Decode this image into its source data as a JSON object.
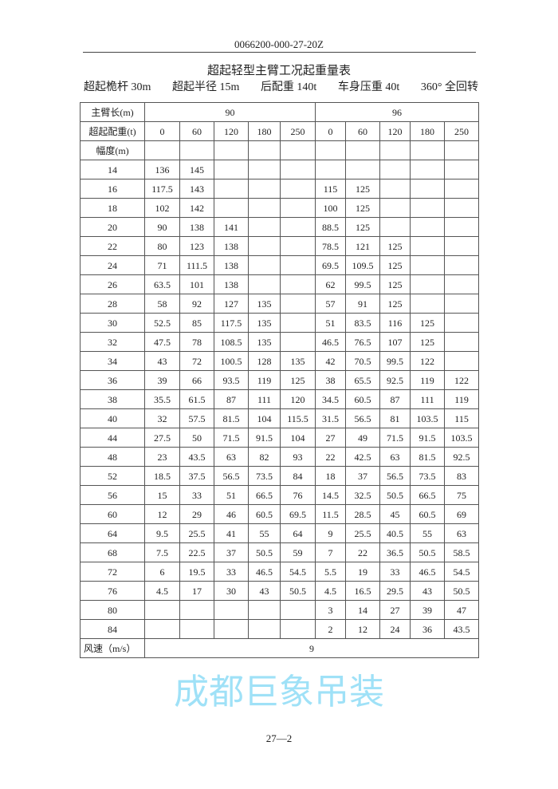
{
  "header": {
    "doc_number": "0066200-000-27-20Z"
  },
  "title": "超起轻型主臂工况起重量表",
  "params": [
    "超起桅杆 30m",
    "超起半径 15m",
    "后配重 140t",
    "车身压重 40t",
    "360° 全回转"
  ],
  "table": {
    "boom_label": "主臂长(m)",
    "boom_lengths": [
      "90",
      "96"
    ],
    "counterweight_label": "超起配重(t)",
    "counterweights": [
      "0",
      "60",
      "120",
      "180",
      "250",
      "0",
      "60",
      "120",
      "180",
      "250"
    ],
    "radius_label": "幅度(m)",
    "rows": [
      {
        "r": "14",
        "v": [
          "136",
          "145",
          "",
          "",
          "",
          "",
          "",
          "",
          "",
          ""
        ]
      },
      {
        "r": "16",
        "v": [
          "117.5",
          "143",
          "",
          "",
          "",
          "115",
          "125",
          "",
          "",
          ""
        ]
      },
      {
        "r": "18",
        "v": [
          "102",
          "142",
          "",
          "",
          "",
          "100",
          "125",
          "",
          "",
          ""
        ]
      },
      {
        "r": "20",
        "v": [
          "90",
          "138",
          "141",
          "",
          "",
          "88.5",
          "125",
          "",
          "",
          ""
        ]
      },
      {
        "r": "22",
        "v": [
          "80",
          "123",
          "138",
          "",
          "",
          "78.5",
          "121",
          "125",
          "",
          ""
        ]
      },
      {
        "r": "24",
        "v": [
          "71",
          "111.5",
          "138",
          "",
          "",
          "69.5",
          "109.5",
          "125",
          "",
          ""
        ]
      },
      {
        "r": "26",
        "v": [
          "63.5",
          "101",
          "138",
          "",
          "",
          "62",
          "99.5",
          "125",
          "",
          ""
        ]
      },
      {
        "r": "28",
        "v": [
          "58",
          "92",
          "127",
          "135",
          "",
          "57",
          "91",
          "125",
          "",
          ""
        ]
      },
      {
        "r": "30",
        "v": [
          "52.5",
          "85",
          "117.5",
          "135",
          "",
          "51",
          "83.5",
          "116",
          "125",
          ""
        ]
      },
      {
        "r": "32",
        "v": [
          "47.5",
          "78",
          "108.5",
          "135",
          "",
          "46.5",
          "76.5",
          "107",
          "125",
          ""
        ]
      },
      {
        "r": "34",
        "v": [
          "43",
          "72",
          "100.5",
          "128",
          "135",
          "42",
          "70.5",
          "99.5",
          "122",
          ""
        ]
      },
      {
        "r": "36",
        "v": [
          "39",
          "66",
          "93.5",
          "119",
          "125",
          "38",
          "65.5",
          "92.5",
          "119",
          "122"
        ]
      },
      {
        "r": "38",
        "v": [
          "35.5",
          "61.5",
          "87",
          "111",
          "120",
          "34.5",
          "60.5",
          "87",
          "111",
          "119"
        ]
      },
      {
        "r": "40",
        "v": [
          "32",
          "57.5",
          "81.5",
          "104",
          "115.5",
          "31.5",
          "56.5",
          "81",
          "103.5",
          "115"
        ]
      },
      {
        "r": "44",
        "v": [
          "27.5",
          "50",
          "71.5",
          "91.5",
          "104",
          "27",
          "49",
          "71.5",
          "91.5",
          "103.5"
        ]
      },
      {
        "r": "48",
        "v": [
          "23",
          "43.5",
          "63",
          "82",
          "93",
          "22",
          "42.5",
          "63",
          "81.5",
          "92.5"
        ]
      },
      {
        "r": "52",
        "v": [
          "18.5",
          "37.5",
          "56.5",
          "73.5",
          "84",
          "18",
          "37",
          "56.5",
          "73.5",
          "83"
        ]
      },
      {
        "r": "56",
        "v": [
          "15",
          "33",
          "51",
          "66.5",
          "76",
          "14.5",
          "32.5",
          "50.5",
          "66.5",
          "75"
        ]
      },
      {
        "r": "60",
        "v": [
          "12",
          "29",
          "46",
          "60.5",
          "69.5",
          "11.5",
          "28.5",
          "45",
          "60.5",
          "69"
        ]
      },
      {
        "r": "64",
        "v": [
          "9.5",
          "25.5",
          "41",
          "55",
          "64",
          "9",
          "25.5",
          "40.5",
          "55",
          "63"
        ]
      },
      {
        "r": "68",
        "v": [
          "7.5",
          "22.5",
          "37",
          "50.5",
          "59",
          "7",
          "22",
          "36.5",
          "50.5",
          "58.5"
        ]
      },
      {
        "r": "72",
        "v": [
          "6",
          "19.5",
          "33",
          "46.5",
          "54.5",
          "5.5",
          "19",
          "33",
          "46.5",
          "54.5"
        ]
      },
      {
        "r": "76",
        "v": [
          "4.5",
          "17",
          "30",
          "43",
          "50.5",
          "4.5",
          "16.5",
          "29.5",
          "43",
          "50.5"
        ]
      },
      {
        "r": "80",
        "v": [
          "",
          "",
          "",
          "",
          "",
          "3",
          "14",
          "27",
          "39",
          "47"
        ]
      },
      {
        "r": "84",
        "v": [
          "",
          "",
          "",
          "",
          "",
          "2",
          "12",
          "24",
          "36",
          "43.5"
        ]
      }
    ],
    "wind_label": "风速（m/s）",
    "wind_value": "9"
  },
  "watermark": "成都巨象吊装",
  "footer": {
    "page": "27—2"
  }
}
